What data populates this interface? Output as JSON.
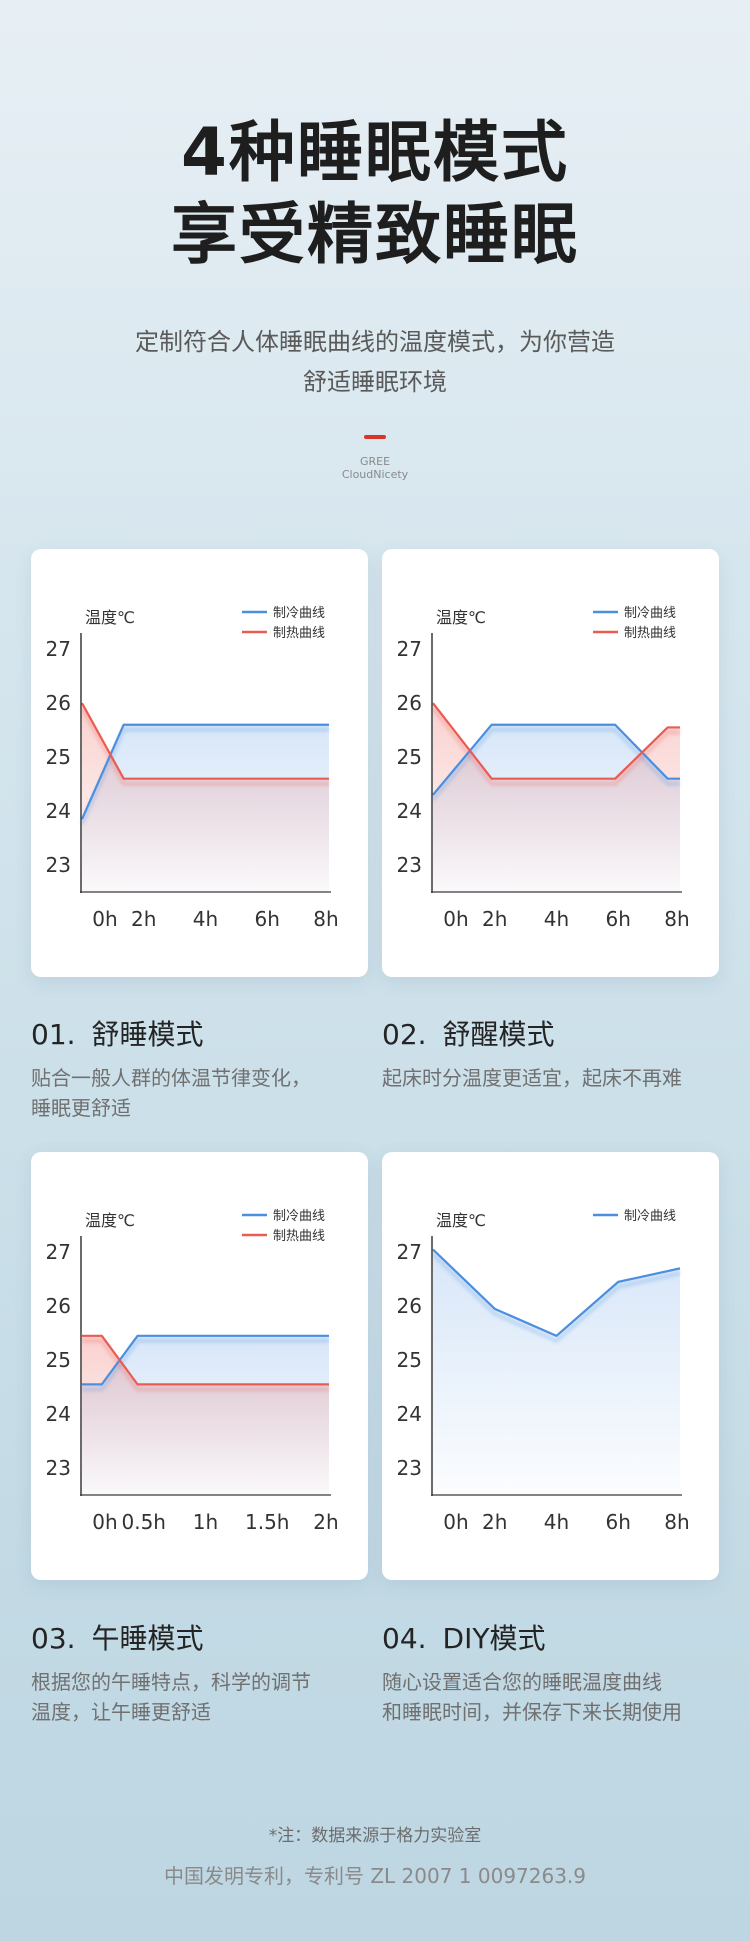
{
  "hero": {
    "title_line1": "4种睡眠模式",
    "title_line2": "享受精致睡眠",
    "subtitle_line1": "定制符合人体睡眠曲线的温度模式，为你营造",
    "subtitle_line2": "舒适睡眠环境",
    "brand_line1": "GREE",
    "brand_line2": "CloudNicety",
    "brand_accent_color": "#d9362b"
  },
  "colors": {
    "cool": "#4a8fe0",
    "heat": "#ea5b52"
  },
  "chart_data": [
    {
      "type": "line",
      "ylabel": "温度℃",
      "y_ticks": [
        "23",
        "24",
        "25",
        "26",
        "27"
      ],
      "ylim": [
        22.5,
        27.3
      ],
      "x": [
        0,
        2,
        4,
        6,
        8
      ],
      "x_labels": [
        "0h",
        "2h",
        "4h",
        "6h",
        "8h"
      ],
      "legend_position": "top-right",
      "series": [
        {
          "name": "制冷曲线",
          "kind": "cool",
          "points": [
            [
              0,
              23.85
            ],
            [
              1.35,
              25.6
            ],
            [
              8,
              25.6
            ]
          ]
        },
        {
          "name": "制热曲线",
          "kind": "heat",
          "points": [
            [
              0,
              26.0
            ],
            [
              1.35,
              24.6
            ],
            [
              8,
              24.6
            ]
          ]
        }
      ]
    },
    {
      "type": "line",
      "ylabel": "温度℃",
      "y_ticks": [
        "23",
        "24",
        "25",
        "26",
        "27"
      ],
      "ylim": [
        22.5,
        27.3
      ],
      "x": [
        0,
        2,
        4,
        6,
        8
      ],
      "x_labels": [
        "0h",
        "2h",
        "4h",
        "6h",
        "8h"
      ],
      "legend_position": "top-right",
      "series": [
        {
          "name": "制冷曲线",
          "kind": "cool",
          "points": [
            [
              0,
              24.3
            ],
            [
              1.9,
              25.6
            ],
            [
              5.9,
              25.6
            ],
            [
              7.6,
              24.6
            ],
            [
              8,
              24.6
            ]
          ]
        },
        {
          "name": "制热曲线",
          "kind": "heat",
          "points": [
            [
              0,
              26.0
            ],
            [
              1.9,
              24.6
            ],
            [
              5.9,
              24.6
            ],
            [
              7.6,
              25.55
            ],
            [
              8,
              25.55
            ]
          ]
        }
      ]
    },
    {
      "type": "line",
      "ylabel": "温度℃",
      "y_ticks": [
        "23",
        "24",
        "25",
        "26",
        "27"
      ],
      "ylim": [
        22.5,
        27.3
      ],
      "x": [
        0,
        0.5,
        1,
        1.5,
        2
      ],
      "x_labels": [
        "0h",
        "0.5h",
        "1h",
        "1.5h",
        "2h"
      ],
      "legend_position": "top-right",
      "series": [
        {
          "name": "制冷曲线",
          "kind": "cool",
          "points": [
            [
              0,
              24.55
            ],
            [
              0.16,
              24.55
            ],
            [
              0.45,
              25.45
            ],
            [
              2,
              25.45
            ]
          ]
        },
        {
          "name": "制热曲线",
          "kind": "heat",
          "points": [
            [
              0,
              25.45
            ],
            [
              0.16,
              25.45
            ],
            [
              0.45,
              24.55
            ],
            [
              2,
              24.55
            ]
          ]
        }
      ]
    },
    {
      "type": "line",
      "ylabel": "温度℃",
      "y_ticks": [
        "23",
        "24",
        "25",
        "26",
        "27"
      ],
      "ylim": [
        22.5,
        27.3
      ],
      "x": [
        0,
        2,
        4,
        6,
        8
      ],
      "x_labels": [
        "0h",
        "2h",
        "4h",
        "6h",
        "8h"
      ],
      "legend_position": "top-right",
      "series": [
        {
          "name": "制冷曲线",
          "kind": "cool",
          "points": [
            [
              0,
              27.05
            ],
            [
              2,
              25.95
            ],
            [
              4,
              25.45
            ],
            [
              6,
              26.45
            ],
            [
              8,
              26.7
            ]
          ]
        }
      ]
    }
  ],
  "modes": [
    {
      "number": "01.",
      "title": "舒睡模式",
      "desc_line1": "贴合一般人群的体温节律变化，",
      "desc_line2": "睡眠更舒适"
    },
    {
      "number": "02.",
      "title": "舒醒模式",
      "desc_line1": "起床时分温度更适宜，起床不再难",
      "desc_line2": ""
    },
    {
      "number": "03.",
      "title": "午睡模式",
      "desc_line1": "根据您的午睡特点，科学的调节",
      "desc_line2": "温度，让午睡更舒适"
    },
    {
      "number": "04.",
      "title": "DIY模式",
      "desc_line1": "随心设置适合您的睡眠温度曲线",
      "desc_line2": "和睡眠时间，并保存下来长期使用"
    }
  ],
  "footer": {
    "note": "*注：数据来源于格力实验室",
    "patent": "中国发明专利，专利号 ZL 2007 1 0097263.9"
  }
}
